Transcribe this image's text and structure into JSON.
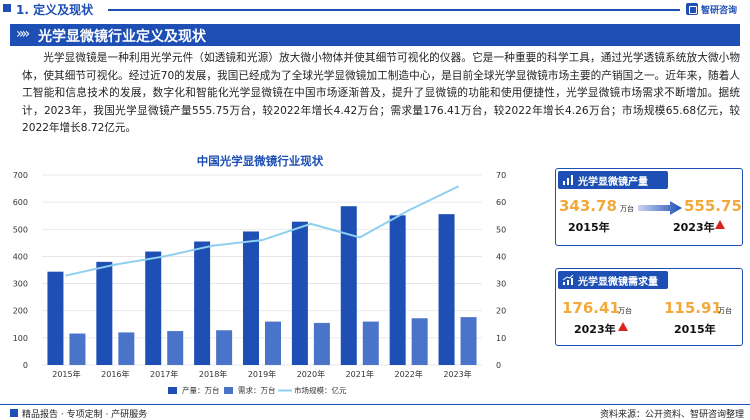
{
  "header": {
    "section": "1. 定义及现状",
    "logo_text": "智研咨询"
  },
  "banner": {
    "title": "光学显微镜行业定义及现状"
  },
  "paragraph": "光学显微镜是一种利用光学元件（如透镜和光源）放大微小物体并使其细节可视化的仪器。它是一种重要的科学工具，通过光学透镜系统放大微小物体，使其细节可视化。经过近70的发展，我国已经成为了全球光学显微镜加工制造中心，是目前全球光学显微镜市场主要的产销国之一。近年来，随着人工智能和信息技术的发展，数字化和智能化光学显微镜在中国市场逐渐普及，提升了显微镜的功能和使用便捷性，光学显微镜市场需求不断增加。据统计，2023年，我国光学显微镜产量555.75万台，较2022年增长4.42万台；需求量176.41万台，较2022年增长4.26万台；市场规模65.68亿元，较2022年增长8.72亿元。",
  "chart_data": {
    "type": "bar",
    "title": "中国光学显微镜行业现状",
    "categories": [
      "2015年",
      "2016年",
      "2017年",
      "2018年",
      "2019年",
      "2020年",
      "2021年",
      "2022年",
      "2023年"
    ],
    "series": [
      {
        "name": "产量：万台",
        "type": "bar",
        "axis": "left",
        "color": "#1d4fb5",
        "values": [
          343.78,
          380,
          418,
          455,
          492,
          528,
          585,
          551.33,
          555.75
        ]
      },
      {
        "name": "需求：万台",
        "type": "bar",
        "axis": "left",
        "color": "#4a74c9",
        "values": [
          115.91,
          120,
          125,
          128,
          160,
          155,
          160,
          172.15,
          176.41
        ]
      },
      {
        "name": "市场规模：亿元",
        "type": "line",
        "axis": "right",
        "color": "#8fd0f0",
        "values": [
          33,
          37,
          40,
          44,
          46,
          52,
          47,
          56.96,
          65.68
        ]
      }
    ],
    "ylim": [
      0,
      700
    ],
    "y_ticks": [
      "0",
      "100",
      "200",
      "300",
      "400",
      "500",
      "600",
      "700"
    ],
    "y2lim": [
      0,
      70
    ],
    "y2_ticks": [
      "0",
      "10",
      "20",
      "30",
      "40",
      "50",
      "60",
      "70"
    ],
    "grid": true,
    "legend_position": "bottom"
  },
  "cards": {
    "production": {
      "title": "光学显微镜产量",
      "from_value": "343.78",
      "from_unit": "万台",
      "from_year": "2015年",
      "to_value": "555.75",
      "to_unit": "万台",
      "to_year": "2023年"
    },
    "demand": {
      "title": "光学显微镜需求量",
      "left_value": "176.41",
      "left_unit": "万台",
      "left_year": "2023年",
      "right_value": "115.91",
      "right_unit": "万台",
      "right_year": "2015年"
    }
  },
  "footer": {
    "left": "精品报告 · 专项定制 · 产研服务",
    "right": "资料来源：公开资料、智研咨询整理"
  },
  "colors": {
    "brand": "#1d4fb5",
    "accent": "#f2a93b",
    "up_arrow": "#d9241c",
    "line": "#8fd0f0"
  }
}
